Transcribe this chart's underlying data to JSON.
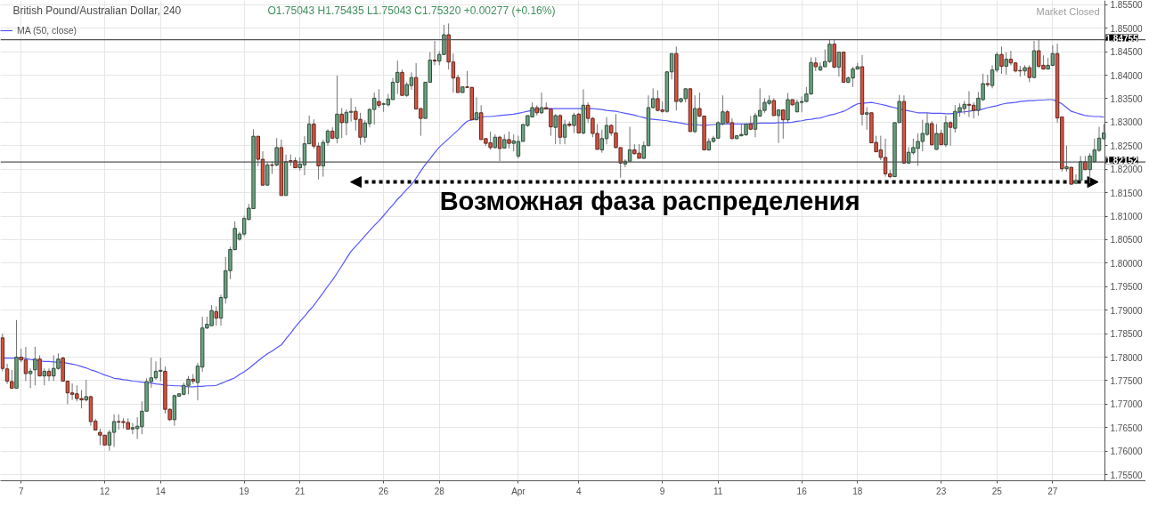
{
  "chart_data": {
    "type": "candlestick",
    "title": "British Pound/Australian Dollar, 240",
    "subtitle": "O1.75043 H1.75435 L1.75043 C1.75320 +0.00277 (+0.16%)",
    "annotations": [
      "Возможная фаза распределения",
      "Market Closed"
    ],
    "categories": [
      null,
      null,
      null,
      null,
      "7",
      null,
      null,
      null,
      null,
      null,
      null,
      null,
      null,
      null,
      null,
      null,
      null,
      null,
      null,
      null,
      null,
      null,
      "12",
      null,
      null,
      null,
      null,
      null,
      null,
      null,
      null,
      null,
      null,
      null,
      "14",
      null,
      null,
      null,
      null,
      null,
      null,
      null,
      null,
      null,
      null,
      null,
      null,
      null,
      null,
      null,
      null,
      null,
      "19",
      null,
      null,
      null,
      null,
      null,
      null,
      null,
      null,
      null,
      null,
      null,
      "21",
      null,
      null,
      null,
      null,
      null,
      null,
      null,
      null,
      null,
      null,
      null,
      null,
      null,
      null,
      null,
      null,
      null,
      "26",
      null,
      null,
      null,
      null,
      null,
      null,
      null,
      null,
      null,
      null,
      null,
      "28",
      null,
      null,
      null,
      null,
      null,
      null,
      null,
      null,
      null,
      null,
      null,
      null,
      null,
      null,
      null,
      null,
      "Apr",
      null,
      null,
      null,
      null,
      null,
      null,
      null,
      null,
      null,
      null,
      null,
      null,
      "4",
      null,
      null,
      null,
      null,
      null,
      null,
      null,
      null,
      null,
      null,
      null,
      null,
      null,
      null,
      null,
      null,
      null,
      "9",
      null,
      null,
      null,
      null,
      null,
      null,
      null,
      null,
      null,
      null,
      null,
      "11",
      null,
      null,
      null,
      null,
      null,
      null,
      null,
      null,
      null,
      null,
      null,
      null,
      null,
      null,
      null,
      null,
      null,
      "16",
      null,
      null,
      null,
      null,
      null,
      null,
      null,
      null,
      null,
      null,
      null,
      "18",
      null,
      null,
      null,
      null,
      null,
      null,
      null,
      null,
      null,
      null,
      null,
      null,
      null,
      null,
      null,
      null,
      null,
      "23",
      null,
      null,
      null,
      null,
      null,
      null,
      null,
      null,
      null,
      null,
      null,
      "25",
      null,
      null,
      null,
      null,
      null,
      null,
      null,
      null,
      null,
      null,
      null,
      "27",
      null,
      null,
      null,
      null,
      null,
      null,
      null,
      null,
      null,
      null,
      null
    ],
    "ohlc": [
      [
        1.7841,
        1.785,
        1.777,
        1.7776
      ],
      [
        1.7775,
        1.7786,
        1.7743,
        1.7749
      ],
      [
        1.7748,
        1.7773,
        1.7734,
        1.7734
      ],
      [
        1.7734,
        1.7879,
        1.7734,
        1.78
      ],
      [
        1.78,
        1.7818,
        1.7789,
        1.7794
      ],
      [
        1.7794,
        1.7822,
        1.7749,
        1.7765
      ],
      [
        1.7765,
        1.7776,
        1.7734,
        1.777
      ],
      [
        1.7773,
        1.7822,
        1.774,
        1.7796
      ],
      [
        1.7796,
        1.7804,
        1.776,
        1.776
      ],
      [
        1.776,
        1.7776,
        1.774,
        1.777
      ],
      [
        1.777,
        1.7776,
        1.7749,
        1.776
      ],
      [
        1.776,
        1.7804,
        1.7749,
        1.7776
      ],
      [
        1.7776,
        1.7808,
        1.7773,
        1.7796
      ],
      [
        1.7798,
        1.7801,
        1.7749,
        1.7749
      ],
      [
        1.7749,
        1.7749,
        1.77,
        1.7724
      ],
      [
        1.7724,
        1.7744,
        1.7709,
        1.7721
      ],
      [
        1.7722,
        1.774,
        1.7706,
        1.7712
      ],
      [
        1.7712,
        1.773,
        1.7691,
        1.7709
      ],
      [
        1.7709,
        1.7752,
        1.7706,
        1.7716
      ],
      [
        1.7716,
        1.7718,
        1.7654,
        1.7663
      ],
      [
        1.7664,
        1.7669,
        1.7645,
        1.7645
      ],
      [
        1.764,
        1.7648,
        1.7613,
        1.7634
      ],
      [
        1.7634,
        1.7634,
        1.7613,
        1.7613
      ],
      [
        1.7613,
        1.7645,
        1.7601,
        1.764
      ],
      [
        1.764,
        1.7678,
        1.7609,
        1.7663
      ],
      [
        1.7663,
        1.7678,
        1.7646,
        1.7662
      ],
      [
        1.7663,
        1.767,
        1.7648,
        1.7661
      ],
      [
        1.7661,
        1.767,
        1.7646,
        1.7647
      ],
      [
        1.7647,
        1.766,
        1.7636,
        1.765
      ],
      [
        1.7648,
        1.7672,
        1.7626,
        1.7653
      ],
      [
        1.7652,
        1.7706,
        1.7636,
        1.7685
      ],
      [
        1.7685,
        1.7755,
        1.7685,
        1.7748
      ],
      [
        1.7748,
        1.7799,
        1.7735,
        1.7756
      ],
      [
        1.7756,
        1.7791,
        1.7752,
        1.777
      ],
      [
        1.777,
        1.7799,
        1.7749,
        1.7772
      ],
      [
        1.777,
        1.778,
        1.768,
        1.7689
      ],
      [
        1.7689,
        1.7691,
        1.7664,
        1.7667
      ],
      [
        1.7667,
        1.772,
        1.7654,
        1.7718
      ],
      [
        1.7717,
        1.7723,
        1.7716,
        1.7722
      ],
      [
        1.7721,
        1.7746,
        1.7719,
        1.774
      ],
      [
        1.774,
        1.776,
        1.7721,
        1.7753
      ],
      [
        1.7753,
        1.7764,
        1.7743,
        1.7749
      ],
      [
        1.7746,
        1.7788,
        1.7708,
        1.7781
      ],
      [
        1.7779,
        1.7886,
        1.7769,
        1.7862
      ],
      [
        1.7862,
        1.7886,
        1.786,
        1.787
      ],
      [
        1.7867,
        1.7911,
        1.7867,
        1.7899
      ],
      [
        1.7897,
        1.7908,
        1.7867,
        1.7883
      ],
      [
        1.7883,
        1.7933,
        1.7867,
        1.7927
      ],
      [
        1.7926,
        1.8013,
        1.7914,
        1.7984
      ],
      [
        1.7984,
        1.8035,
        1.7966,
        1.8029
      ],
      [
        1.8029,
        1.8089,
        1.8027,
        1.8074
      ],
      [
        1.8051,
        1.8067,
        1.8048,
        1.8062
      ],
      [
        1.8062,
        1.8101,
        1.8057,
        1.8095
      ],
      [
        1.8093,
        1.8126,
        1.8091,
        1.8117
      ],
      [
        1.8116,
        1.8285,
        1.8116,
        1.827
      ],
      [
        1.827,
        1.827,
        1.8206,
        1.8221
      ],
      [
        1.8221,
        1.8238,
        1.8165,
        1.8166
      ],
      [
        1.8166,
        1.8215,
        1.8165,
        1.8209
      ],
      [
        1.8209,
        1.8216,
        1.819,
        1.8208
      ],
      [
        1.8209,
        1.8266,
        1.8206,
        1.8246
      ],
      [
        1.8246,
        1.8263,
        1.8144,
        1.8144
      ],
      [
        1.8144,
        1.8231,
        1.8144,
        1.8216
      ],
      [
        1.8218,
        1.8231,
        1.8207,
        1.8216
      ],
      [
        1.8218,
        1.8225,
        1.8203,
        1.8203
      ],
      [
        1.8203,
        1.8225,
        1.8197,
        1.8211
      ],
      [
        1.8209,
        1.827,
        1.8187,
        1.8254
      ],
      [
        1.8254,
        1.8314,
        1.8254,
        1.8296
      ],
      [
        1.8296,
        1.8306,
        1.8244,
        1.8249
      ],
      [
        1.8249,
        1.8257,
        1.8178,
        1.8207
      ],
      [
        1.8207,
        1.8263,
        1.8184,
        1.8257
      ],
      [
        1.8257,
        1.8285,
        1.825,
        1.8281
      ],
      [
        1.8281,
        1.8289,
        1.8264,
        1.8266
      ],
      [
        1.8266,
        1.8399,
        1.8255,
        1.8317
      ],
      [
        1.8317,
        1.833,
        1.8266,
        1.8299
      ],
      [
        1.8299,
        1.8327,
        1.8272,
        1.8321
      ],
      [
        1.8321,
        1.8351,
        1.8301,
        1.8323
      ],
      [
        1.8323,
        1.8333,
        1.8282,
        1.8306
      ],
      [
        1.8306,
        1.832,
        1.8252,
        1.8268
      ],
      [
        1.8268,
        1.8304,
        1.8257,
        1.8298
      ],
      [
        1.8297,
        1.833,
        1.8289,
        1.8327
      ],
      [
        1.8327,
        1.8363,
        1.8295,
        1.8351
      ],
      [
        1.8344,
        1.837,
        1.833,
        1.8336
      ],
      [
        1.8338,
        1.8342,
        1.8322,
        1.8339
      ],
      [
        1.8337,
        1.836,
        1.8334,
        1.8349
      ],
      [
        1.8348,
        1.8394,
        1.8348,
        1.8385
      ],
      [
        1.8385,
        1.8431,
        1.836,
        1.8406
      ],
      [
        1.8406,
        1.8412,
        1.8357,
        1.8357
      ],
      [
        1.8357,
        1.8385,
        1.8354,
        1.838
      ],
      [
        1.8378,
        1.8406,
        1.8369,
        1.8395
      ],
      [
        1.8395,
        1.8426,
        1.8328,
        1.8328
      ],
      [
        1.8329,
        1.8329,
        1.8271,
        1.8308
      ],
      [
        1.8308,
        1.8385,
        1.8308,
        1.8385
      ],
      [
        1.8385,
        1.8449,
        1.8385,
        1.8432
      ],
      [
        1.8432,
        1.8473,
        1.8421,
        1.843
      ],
      [
        1.843,
        1.8451,
        1.8421,
        1.8444
      ],
      [
        1.8444,
        1.8507,
        1.8443,
        1.8486
      ],
      [
        1.8486,
        1.851,
        1.8412,
        1.8428
      ],
      [
        1.8428,
        1.8446,
        1.8363,
        1.8394
      ],
      [
        1.8395,
        1.8401,
        1.8363,
        1.8363
      ],
      [
        1.8363,
        1.8375,
        1.8363,
        1.8375
      ],
      [
        1.8375,
        1.8409,
        1.8373,
        1.8374
      ],
      [
        1.8374,
        1.8375,
        1.8305,
        1.8305
      ],
      [
        1.8305,
        1.8353,
        1.8305,
        1.832
      ],
      [
        1.832,
        1.8336,
        1.8263,
        1.8263
      ],
      [
        1.8265,
        1.8265,
        1.825,
        1.8255
      ],
      [
        1.8256,
        1.828,
        1.8241,
        1.8246
      ],
      [
        1.8246,
        1.8274,
        1.8244,
        1.8268
      ],
      [
        1.8268,
        1.8271,
        1.8217,
        1.8244
      ],
      [
        1.8245,
        1.8274,
        1.8244,
        1.8263
      ],
      [
        1.8263,
        1.828,
        1.8244,
        1.8255
      ],
      [
        1.8255,
        1.8274,
        1.8238,
        1.826
      ],
      [
        1.8228,
        1.8271,
        1.8223,
        1.8259
      ],
      [
        1.8259,
        1.8296,
        1.8259,
        1.8295
      ],
      [
        1.8293,
        1.8314,
        1.829,
        1.8314
      ],
      [
        1.8311,
        1.8342,
        1.8311,
        1.8331
      ],
      [
        1.8331,
        1.8336,
        1.8314,
        1.832
      ],
      [
        1.832,
        1.8363,
        1.8317,
        1.8331
      ],
      [
        1.8331,
        1.8342,
        1.8327,
        1.8328
      ],
      [
        1.8328,
        1.8329,
        1.8271,
        1.829
      ],
      [
        1.8289,
        1.8317,
        1.8253,
        1.8314
      ],
      [
        1.8314,
        1.8317,
        1.8253,
        1.8268
      ],
      [
        1.8268,
        1.8305,
        1.8253,
        1.8295
      ],
      [
        1.8296,
        1.8302,
        1.829,
        1.8293
      ],
      [
        1.8293,
        1.832,
        1.8277,
        1.8315
      ],
      [
        1.8317,
        1.832,
        1.8276,
        1.8277
      ],
      [
        1.8277,
        1.837,
        1.8274,
        1.8336
      ],
      [
        1.8336,
        1.8342,
        1.8299,
        1.8308
      ],
      [
        1.8308,
        1.8311,
        1.8268,
        1.8276
      ],
      [
        1.8276,
        1.8296,
        1.8242,
        1.8242
      ],
      [
        1.8241,
        1.8284,
        1.8235,
        1.8265
      ],
      [
        1.8265,
        1.8311,
        1.8253,
        1.8293
      ],
      [
        1.8293,
        1.8296,
        1.8271,
        1.8277
      ],
      [
        1.8277,
        1.8317,
        1.8244,
        1.8246
      ],
      [
        1.8246,
        1.8246,
        1.8182,
        1.8213
      ],
      [
        1.8211,
        1.8221,
        1.8204,
        1.8217
      ],
      [
        1.8217,
        1.829,
        1.8216,
        1.8241
      ],
      [
        1.8241,
        1.8253,
        1.8231,
        1.8233
      ],
      [
        1.8234,
        1.8253,
        1.8223,
        1.8223
      ],
      [
        1.8223,
        1.8259,
        1.8222,
        1.825
      ],
      [
        1.825,
        1.8357,
        1.825,
        1.8331
      ],
      [
        1.8331,
        1.8372,
        1.8329,
        1.835
      ],
      [
        1.835,
        1.8368,
        1.8323,
        1.8325
      ],
      [
        1.8326,
        1.8344,
        1.832,
        1.8323
      ],
      [
        1.8323,
        1.8409,
        1.832,
        1.8407
      ],
      [
        1.8407,
        1.8446,
        1.8391,
        1.8446
      ],
      [
        1.8446,
        1.8461,
        1.8325,
        1.8344
      ],
      [
        1.8344,
        1.8352,
        1.8341,
        1.835
      ],
      [
        1.835,
        1.8372,
        1.8342,
        1.8371
      ],
      [
        1.8371,
        1.8372,
        1.828,
        1.828
      ],
      [
        1.828,
        1.8357,
        1.8277,
        1.8329
      ],
      [
        1.8329,
        1.8363,
        1.8311,
        1.8313
      ],
      [
        1.8313,
        1.8313,
        1.8241,
        1.8241
      ],
      [
        1.8241,
        1.8266,
        1.8239,
        1.8259
      ],
      [
        1.8259,
        1.8271,
        1.8256,
        1.8266
      ],
      [
        1.8266,
        1.8302,
        1.8265,
        1.8299
      ],
      [
        1.8296,
        1.8357,
        1.8293,
        1.8322
      ],
      [
        1.8322,
        1.8326,
        1.8296,
        1.8299
      ],
      [
        1.8299,
        1.8308,
        1.8264,
        1.8265
      ],
      [
        1.8265,
        1.8272,
        1.8264,
        1.8271
      ],
      [
        1.8271,
        1.8296,
        1.827,
        1.8274
      ],
      [
        1.8273,
        1.8296,
        1.8271,
        1.8296
      ],
      [
        1.8296,
        1.8313,
        1.8283,
        1.8285
      ],
      [
        1.8285,
        1.832,
        1.8268,
        1.8314
      ],
      [
        1.8313,
        1.8372,
        1.8311,
        1.8325
      ],
      [
        1.8325,
        1.8351,
        1.832,
        1.8342
      ],
      [
        1.834,
        1.8357,
        1.8336,
        1.8346
      ],
      [
        1.8346,
        1.8351,
        1.8314,
        1.8314
      ],
      [
        1.8314,
        1.8326,
        1.8256,
        1.8326
      ],
      [
        1.8326,
        1.8326,
        1.8265,
        1.8305
      ],
      [
        1.8305,
        1.8362,
        1.8299,
        1.8348
      ],
      [
        1.8348,
        1.8348,
        1.8335,
        1.8337
      ],
      [
        1.8322,
        1.8348,
        1.8321,
        1.8342
      ],
      [
        1.8342,
        1.8355,
        1.8321,
        1.8344
      ],
      [
        1.8344,
        1.8375,
        1.8342,
        1.836
      ],
      [
        1.836,
        1.8438,
        1.8358,
        1.8427
      ],
      [
        1.8426,
        1.8438,
        1.8409,
        1.8418
      ],
      [
        1.8411,
        1.8427,
        1.8409,
        1.8418
      ],
      [
        1.8418,
        1.8455,
        1.8417,
        1.8429
      ],
      [
        1.8429,
        1.8477,
        1.8426,
        1.8466
      ],
      [
        1.8466,
        1.8477,
        1.8415,
        1.8417
      ],
      [
        1.8417,
        1.845,
        1.8397,
        1.8449
      ],
      [
        1.8449,
        1.845,
        1.8385,
        1.8385
      ],
      [
        1.8385,
        1.8397,
        1.8383,
        1.8394
      ],
      [
        1.8394,
        1.8418,
        1.8375,
        1.8413
      ],
      [
        1.8413,
        1.8426,
        1.8412,
        1.8418
      ],
      [
        1.8418,
        1.8443,
        1.8293,
        1.8317
      ],
      [
        1.8317,
        1.8332,
        1.8284,
        1.832
      ],
      [
        1.832,
        1.832,
        1.8256,
        1.8256
      ],
      [
        1.8257,
        1.8271,
        1.8237,
        1.8237
      ],
      [
        1.8241,
        1.8271,
        1.8219,
        1.8225
      ],
      [
        1.8225,
        1.8265,
        1.8184,
        1.819
      ],
      [
        1.819,
        1.8198,
        1.8181,
        1.8184
      ],
      [
        1.8184,
        1.8299,
        1.8184,
        1.8299
      ],
      [
        1.8299,
        1.8358,
        1.8299,
        1.8344
      ],
      [
        1.8344,
        1.8357,
        1.8211,
        1.8213
      ],
      [
        1.8213,
        1.8247,
        1.8211,
        1.8236
      ],
      [
        1.8235,
        1.8265,
        1.8231,
        1.8246
      ],
      [
        1.8244,
        1.8276,
        1.8207,
        1.8259
      ],
      [
        1.8259,
        1.8305,
        1.8238,
        1.8276
      ],
      [
        1.8274,
        1.832,
        1.8271,
        1.8297
      ],
      [
        1.8297,
        1.8302,
        1.825,
        1.8252
      ],
      [
        1.8242,
        1.8296,
        1.8241,
        1.8276
      ],
      [
        1.8276,
        1.8284,
        1.8252,
        1.8252
      ],
      [
        1.8252,
        1.8314,
        1.8247,
        1.8299
      ],
      [
        1.8299,
        1.8302,
        1.825,
        1.8289
      ],
      [
        1.8287,
        1.8336,
        1.8278,
        1.8323
      ],
      [
        1.8322,
        1.834,
        1.8311,
        1.8331
      ],
      [
        1.8329,
        1.8345,
        1.8317,
        1.8338
      ],
      [
        1.8338,
        1.8366,
        1.8311,
        1.8336
      ],
      [
        1.8336,
        1.8342,
        1.8308,
        1.8325
      ],
      [
        1.8325,
        1.8364,
        1.8314,
        1.8351
      ],
      [
        1.8348,
        1.8403,
        1.8345,
        1.8382
      ],
      [
        1.8382,
        1.8401,
        1.8375,
        1.838
      ],
      [
        1.8378,
        1.8421,
        1.8372,
        1.8411
      ],
      [
        1.8411,
        1.8449,
        1.8406,
        1.8444
      ],
      [
        1.8444,
        1.8461,
        1.8403,
        1.8419
      ],
      [
        1.8419,
        1.8449,
        1.8401,
        1.8434
      ],
      [
        1.8434,
        1.8452,
        1.8421,
        1.8426
      ],
      [
        1.8426,
        1.8428,
        1.8406,
        1.8409
      ],
      [
        1.841,
        1.842,
        1.8397,
        1.8409
      ],
      [
        1.8409,
        1.8421,
        1.8399,
        1.8416
      ],
      [
        1.8416,
        1.8421,
        1.8385,
        1.8395
      ],
      [
        1.8395,
        1.8473,
        1.8394,
        1.8452
      ],
      [
        1.8452,
        1.8477,
        1.8415,
        1.8419
      ],
      [
        1.8421,
        1.8442,
        1.8412,
        1.8413
      ],
      [
        1.8413,
        1.8437,
        1.8412,
        1.8421
      ],
      [
        1.8421,
        1.8464,
        1.8419,
        1.8446
      ],
      [
        1.8446,
        1.8467,
        1.8299,
        1.8309
      ],
      [
        1.8311,
        1.8311,
        1.8195,
        1.8201
      ],
      [
        1.8201,
        1.825,
        1.8195,
        1.8205
      ],
      [
        1.8204,
        1.8204,
        1.8167,
        1.8168
      ],
      [
        1.817,
        1.8189,
        1.8168,
        1.8176
      ],
      [
        1.8176,
        1.8228,
        1.8173,
        1.8216
      ],
      [
        1.8216,
        1.8228,
        1.8198,
        1.8199
      ],
      [
        1.8199,
        1.8234,
        1.817,
        1.8228
      ],
      [
        1.8216,
        1.8265,
        1.8213,
        1.8241
      ],
      [
        1.824,
        1.829,
        1.8237,
        1.8266
      ],
      [
        1.8265,
        1.8296,
        1.8262,
        1.8277
      ]
    ],
    "colors": [
      "#d75442",
      "#d75442",
      "#d75442",
      "#6ba583",
      "#d75442",
      "#d75442",
      "#6ba583",
      "#6ba583",
      "#d75442",
      "#6ba583",
      "#d75442",
      "#6ba583",
      "#6ba583",
      "#d75442",
      "#d75442",
      "#d75442",
      "#d75442",
      "#d75442",
      "#6ba583",
      "#d75442",
      "#d75442",
      "#d75442",
      "#d75442",
      "#6ba583",
      "#6ba583",
      "#d75442",
      "#d75442",
      "#d75442",
      "#6ba583",
      "#6ba583",
      "#6ba583",
      "#6ba583",
      "#6ba583",
      "#6ba583",
      "#6ba583",
      "#d75442",
      "#d75442",
      "#6ba583",
      "#6ba583",
      "#6ba583",
      "#6ba583",
      "#d75442",
      "#6ba583",
      "#6ba583",
      "#6ba583",
      "#6ba583",
      "#d75442",
      "#6ba583",
      "#6ba583",
      "#6ba583",
      "#6ba583",
      "#6ba583",
      "#6ba583",
      "#6ba583",
      "#6ba583",
      "#d75442",
      "#d75442",
      "#6ba583",
      "#d75442",
      "#6ba583",
      "#d75442",
      "#6ba583",
      "#d75442",
      "#d75442",
      "#6ba583",
      "#6ba583",
      "#6ba583",
      "#d75442",
      "#d75442",
      "#6ba583",
      "#6ba583",
      "#d75442",
      "#6ba583",
      "#d75442",
      "#6ba583",
      "#6ba583",
      "#d75442",
      "#d75442",
      "#6ba583",
      "#6ba583",
      "#6ba583",
      "#d75442",
      "#6ba583",
      "#6ba583",
      "#6ba583",
      "#6ba583",
      "#d75442",
      "#6ba583",
      "#6ba583",
      "#d75442",
      "#d75442",
      "#6ba583",
      "#6ba583",
      "#d75442",
      "#6ba583",
      "#6ba583",
      "#d75442",
      "#d75442",
      "#d75442",
      "#6ba583",
      "#d75442",
      "#d75442",
      "#6ba583",
      "#d75442",
      "#d75442",
      "#d75442",
      "#6ba583",
      "#d75442",
      "#6ba583",
      "#d75442",
      "#6ba583",
      "#6ba583",
      "#6ba583",
      "#6ba583",
      "#6ba583",
      "#d75442",
      "#6ba583",
      "#d75442",
      "#d75442",
      "#6ba583",
      "#d75442",
      "#6ba583",
      "#d75442",
      "#6ba583",
      "#d75442",
      "#6ba583",
      "#d75442",
      "#d75442",
      "#d75442",
      "#6ba583",
      "#6ba583",
      "#d75442",
      "#d75442",
      "#d75442",
      "#6ba583",
      "#6ba583",
      "#d75442",
      "#d75442",
      "#6ba583",
      "#6ba583",
      "#6ba583",
      "#d75442",
      "#d75442",
      "#6ba583",
      "#6ba583",
      "#d75442",
      "#6ba583",
      "#6ba583",
      "#d75442",
      "#6ba583",
      "#d75442",
      "#d75442",
      "#6ba583",
      "#6ba583",
      "#6ba583",
      "#6ba583",
      "#d75442",
      "#d75442",
      "#6ba583",
      "#6ba583",
      "#6ba583",
      "#d75442",
      "#6ba583",
      "#6ba583",
      "#6ba583",
      "#6ba583",
      "#d75442",
      "#6ba583",
      "#d75442",
      "#6ba583",
      "#d75442",
      "#6ba583",
      "#6ba583",
      "#6ba583",
      "#6ba583",
      "#d75442",
      "#6ba583",
      "#6ba583",
      "#6ba583",
      "#d75442",
      "#6ba583",
      "#d75442",
      "#6ba583",
      "#6ba583",
      "#6ba583",
      "#d75442",
      "#6ba583",
      "#d75442",
      "#d75442",
      "#d75442",
      "#d75442",
      "#d75442",
      "#6ba583",
      "#6ba583",
      "#d75442",
      "#6ba583",
      "#6ba583",
      "#6ba583",
      "#6ba583",
      "#6ba583",
      "#d75442",
      "#6ba583",
      "#d75442",
      "#6ba583",
      "#d75442",
      "#6ba583",
      "#6ba583",
      "#6ba583",
      "#d75442",
      "#d75442",
      "#6ba583",
      "#6ba583",
      "#d75442",
      "#6ba583",
      "#6ba583",
      "#d75442",
      "#6ba583",
      "#d75442",
      "#d75442",
      "#d75442",
      "#6ba583",
      "#d75442",
      "#6ba583",
      "#d75442",
      "#d75442",
      "#6ba583",
      "#6ba583",
      "#d75442",
      "#d75442",
      "#6ba583",
      "#d75442",
      "#6ba583",
      "#6ba583",
      "#d75442",
      "#6ba583",
      "#6ba583",
      "#6ba583",
      "#6ba583"
    ],
    "series": [
      {
        "type": "line",
        "name": "MA (50, close)",
        "color": "#5555ff",
        "values": [
          1.7798,
          1.7798,
          1.7798,
          1.7798,
          1.7798,
          1.7797,
          1.7795,
          1.7794,
          1.7792,
          1.7791,
          1.7791,
          1.779,
          1.7789,
          1.7789,
          1.7787,
          1.7785,
          1.7783,
          1.778,
          1.7777,
          1.7773,
          1.777,
          1.7766,
          1.7762,
          1.7759,
          1.7755,
          1.7754,
          1.7752,
          1.7751,
          1.7749,
          1.7748,
          1.7747,
          1.7746,
          1.7745,
          1.7743,
          1.7742,
          1.774,
          1.774,
          1.7739,
          1.7739,
          1.7738,
          1.7737,
          1.7737,
          1.7738,
          1.7738,
          1.7739,
          1.7739,
          1.774,
          1.7744,
          1.7748,
          1.7752,
          1.7756,
          1.7763,
          1.7769,
          1.7776,
          1.7784,
          1.7792,
          1.78,
          1.7807,
          1.7813,
          1.782,
          1.7826,
          1.7839,
          1.7851,
          1.7864,
          1.7876,
          1.7887,
          1.7899,
          1.791,
          1.7924,
          1.7937,
          1.7951,
          1.7964,
          1.7979,
          1.7994,
          1.801,
          1.8025,
          1.8036,
          1.8047,
          1.8058,
          1.8069,
          1.808,
          1.809,
          1.8101,
          1.8113,
          1.8124,
          1.8136,
          1.8146,
          1.8157,
          1.8167,
          1.8181,
          1.8196,
          1.821,
          1.8222,
          1.8235,
          1.8247,
          1.8256,
          1.8265,
          1.8274,
          1.8283,
          1.8293,
          1.8302,
          1.8305,
          1.8308,
          1.8311,
          1.8312,
          1.8312,
          1.8313,
          1.8314,
          1.8315,
          1.8316,
          1.8317,
          1.8319,
          1.8321,
          1.8323,
          1.8325,
          1.8326,
          1.8328,
          1.8329,
          1.8329,
          1.8329,
          1.8329,
          1.8329,
          1.8329,
          1.8329,
          1.8329,
          1.8329,
          1.8329,
          1.8329,
          1.8328,
          1.8327,
          1.8325,
          1.8324,
          1.8323,
          1.8321,
          1.8319,
          1.8317,
          1.8315,
          1.8312,
          1.831,
          1.8307,
          1.8306,
          1.8305,
          1.8304,
          1.8303,
          1.8301,
          1.83,
          1.8298,
          1.8296,
          1.8295,
          1.8295,
          1.8294,
          1.8293,
          1.8294,
          1.8295,
          1.8295,
          1.8296,
          1.8296,
          1.8296,
          1.8296,
          1.8296,
          1.8296,
          1.8297,
          1.8297,
          1.8298,
          1.8298,
          1.8298,
          1.8298,
          1.8299,
          1.8299,
          1.8299,
          1.83,
          1.8302,
          1.8303,
          1.8305,
          1.8306,
          1.8308,
          1.8309,
          1.8312,
          1.8315,
          1.8317,
          1.832,
          1.8323,
          1.8328,
          1.8334,
          1.8339,
          1.834,
          1.8341,
          1.8342,
          1.834,
          1.8338,
          1.8336,
          1.8333,
          1.8331,
          1.8328,
          1.8326,
          1.8324,
          1.8322,
          1.832,
          1.832,
          1.832,
          1.8319,
          1.8319,
          1.8319,
          1.8318,
          1.8318,
          1.8319,
          1.8321,
          1.8322,
          1.8323,
          1.8325,
          1.8326,
          1.8328,
          1.8331,
          1.8333,
          1.8335,
          1.8338,
          1.834,
          1.8341,
          1.8342,
          1.8344,
          1.8345,
          1.8346,
          1.8346,
          1.8347,
          1.8347,
          1.8348,
          1.8348,
          1.8344,
          1.8339,
          1.8331,
          1.8323,
          1.832,
          1.8317,
          1.8314,
          1.8313,
          1.8312,
          1.8312,
          1.8311
        ]
      }
    ],
    "ylim": [
      1.7537,
      1.8559
    ],
    "yticks": [
      {
        "value": 1.755,
        "label": "1.75500"
      },
      {
        "value": 1.76,
        "label": "1.76000"
      },
      {
        "value": 1.765,
        "label": "1.76500"
      },
      {
        "value": 1.77,
        "label": "1.77000"
      },
      {
        "value": 1.775,
        "label": "1.77500"
      },
      {
        "value": 1.78,
        "label": "1.78000"
      },
      {
        "value": 1.785,
        "label": "1.78500"
      },
      {
        "value": 1.79,
        "label": "1.79000"
      },
      {
        "value": 1.795,
        "label": "1.79500"
      },
      {
        "value": 1.8,
        "label": "1.80000"
      },
      {
        "value": 1.805,
        "label": "1.80500"
      },
      {
        "value": 1.81,
        "label": "1.81000"
      },
      {
        "value": 1.815,
        "label": "1.81500"
      },
      {
        "value": 1.82,
        "label": "1.82000"
      },
      {
        "value": 1.825,
        "label": "1.82500"
      },
      {
        "value": 1.83,
        "label": "1.83000"
      },
      {
        "value": 1.835,
        "label": "1.83500"
      },
      {
        "value": 1.84,
        "label": "1.84000"
      },
      {
        "value": 1.845,
        "label": "1.84500"
      },
      {
        "value": 1.85,
        "label": "1.85000"
      },
      {
        "value": 1.855,
        "label": "1.85500"
      }
    ],
    "ref_lines": [
      {
        "axis": "y",
        "value": 1.84755,
        "label": "1.84755",
        "color": "#555555"
      },
      {
        "axis": "y",
        "value": 1.82152,
        "label": "1.82152",
        "color": "#555555"
      }
    ],
    "grid": true,
    "legend": "top left"
  }
}
